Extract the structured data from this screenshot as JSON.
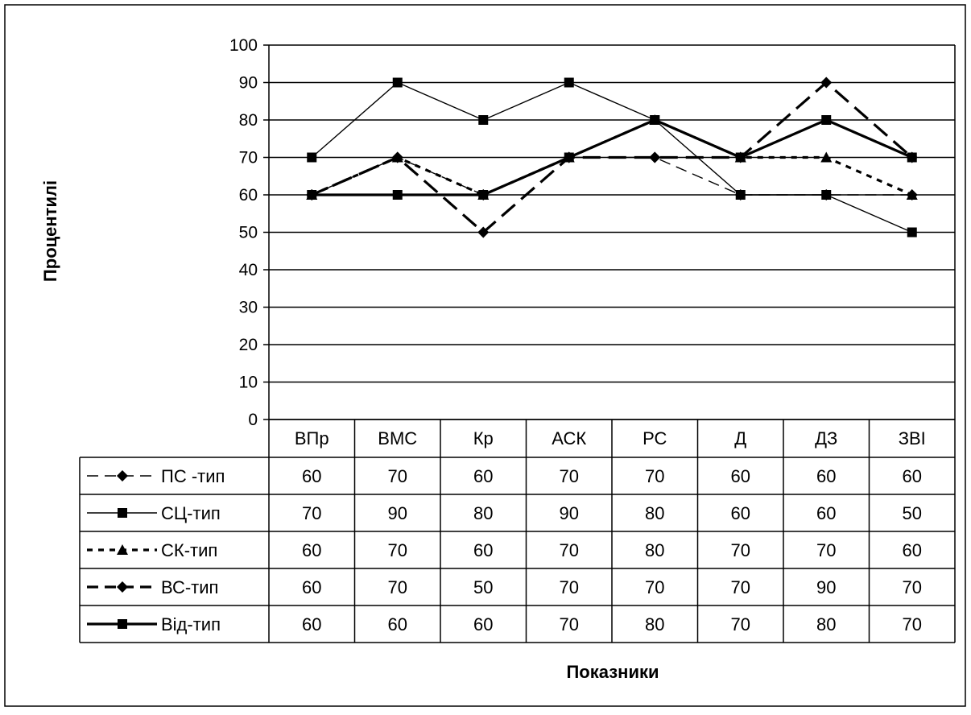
{
  "chart_data": {
    "type": "line",
    "categories": [
      "ВПр",
      "ВМС",
      "Кр",
      "АСК",
      "РС",
      "Д",
      "ДЗ",
      "ЗВІ"
    ],
    "xlabel": "Показники",
    "ylabel": "Процентилі",
    "ylim": [
      0,
      100
    ],
    "yticks": [
      0,
      10,
      20,
      30,
      40,
      50,
      60,
      70,
      80,
      90,
      100
    ],
    "grid": true,
    "legend": "data-table",
    "series": [
      {
        "name": "ПС -тип",
        "values": [
          60,
          70,
          60,
          70,
          70,
          60,
          60,
          60
        ],
        "line": "long-dash",
        "width": "thin",
        "marker": "diamond"
      },
      {
        "name": "СЦ-тип",
        "values": [
          70,
          90,
          80,
          90,
          80,
          60,
          60,
          50
        ],
        "line": "solid",
        "width": "thin",
        "marker": "square"
      },
      {
        "name": "СК-тип",
        "values": [
          60,
          70,
          60,
          70,
          80,
          70,
          70,
          60
        ],
        "line": "short-dash",
        "width": "thick",
        "marker": "triangle"
      },
      {
        "name": "ВС-тип",
        "values": [
          60,
          70,
          50,
          70,
          70,
          70,
          90,
          70
        ],
        "line": "long-dash",
        "width": "thick",
        "marker": "diamond"
      },
      {
        "name": "Від-тип",
        "values": [
          60,
          60,
          60,
          70,
          80,
          70,
          80,
          70
        ],
        "line": "solid",
        "width": "thick",
        "marker": "square"
      }
    ]
  }
}
